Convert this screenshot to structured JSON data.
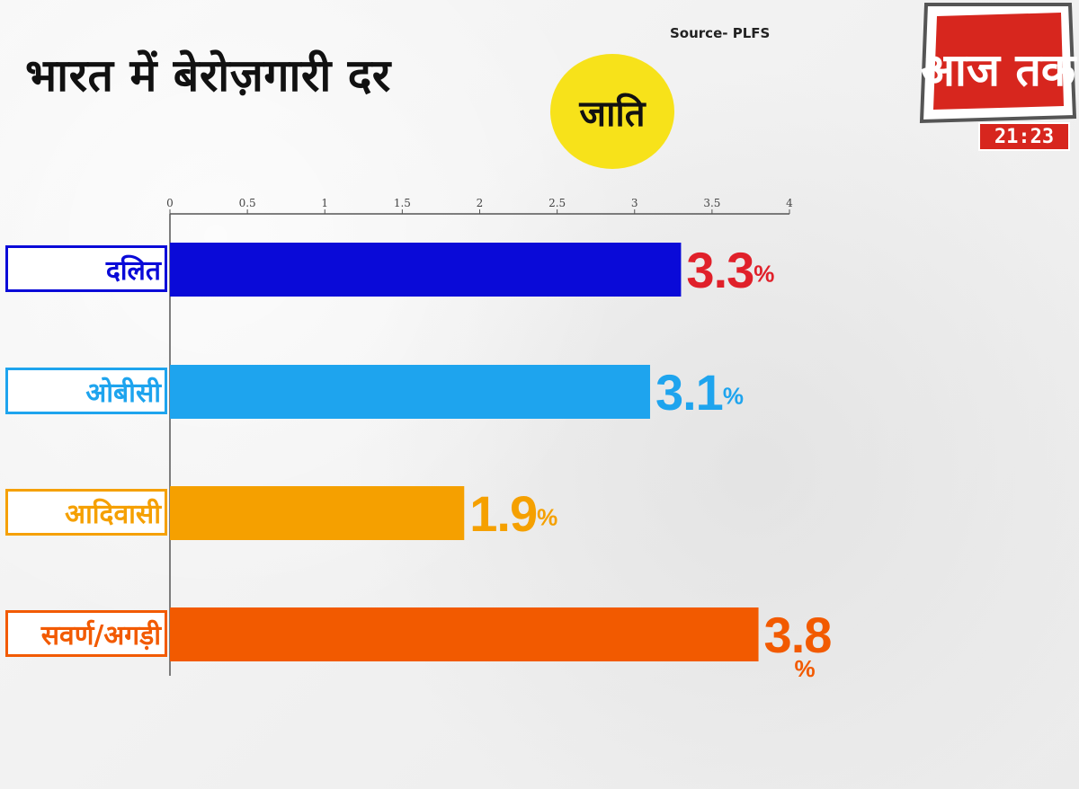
{
  "title": "भारत में बेरोज़गारी दर",
  "source": "Source- PLFS",
  "badge": "जाति",
  "logo": {
    "text": "आज तक",
    "time": "21:23"
  },
  "colors": {
    "dalit": "#0a0ad8",
    "obc": "#1ea4ee",
    "adivasi": "#f5a000",
    "savarna": "#f25a00",
    "dalit_value": "#e0202a"
  },
  "chart_data": {
    "type": "bar",
    "orientation": "horizontal",
    "categories": [
      "दलित",
      "ओबीसी",
      "आदिवासी",
      "सवर्ण/अगड़ी"
    ],
    "values": [
      3.3,
      3.1,
      1.9,
      3.8
    ],
    "value_labels": [
      "3.3",
      "3.1",
      "1.9",
      "3.8"
    ],
    "value_suffix": "%",
    "xlim": [
      0,
      4
    ],
    "x_ticks": [
      "0",
      "0.5",
      "1",
      "1.5",
      "2",
      "2.5",
      "3",
      "3.5",
      "4"
    ],
    "bar_colors": [
      "#0a0ad8",
      "#1ea4ee",
      "#f5a000",
      "#f25a00"
    ],
    "label_colors": [
      "#e0202a",
      "#1ea4ee",
      "#f5a000",
      "#f25a00"
    ],
    "title": "भारत में बेरोज़गारी दर",
    "grid": false
  }
}
